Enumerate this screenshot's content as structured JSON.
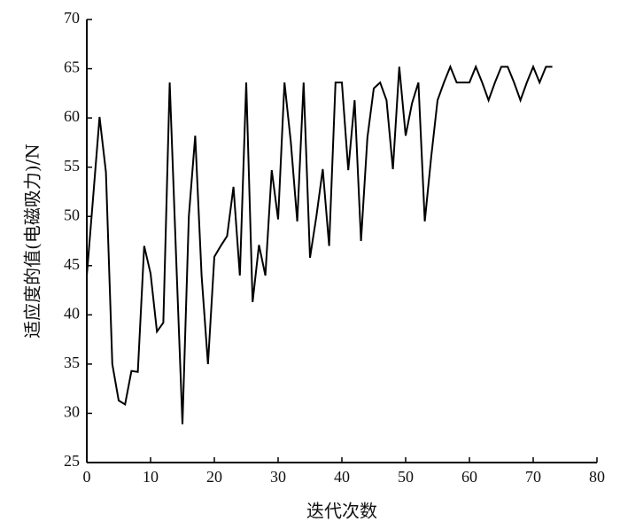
{
  "chart_data": {
    "type": "line",
    "x_label": "迭代次数",
    "y_label": "适应度的值(电磁吸力)/N",
    "x": [
      0,
      1,
      2,
      3,
      4,
      5,
      6,
      7,
      8,
      9,
      10,
      11,
      12,
      13,
      14,
      15,
      16,
      17,
      18,
      19,
      20,
      21,
      22,
      23,
      24,
      25,
      26,
      27,
      28,
      29,
      30,
      31,
      32,
      33,
      34,
      35,
      36,
      37,
      38,
      39,
      40,
      41,
      42,
      43,
      44,
      45,
      46,
      47,
      48,
      49,
      50,
      51,
      52,
      53,
      54,
      55,
      56,
      57,
      58,
      59,
      60,
      61,
      62,
      63,
      64,
      65,
      66,
      67,
      68,
      69,
      70,
      71,
      72,
      73
    ],
    "series": [
      {
        "color": "#000000",
        "values": [
          44,
          52,
          60.1,
          54.5,
          35,
          31.3,
          30.9,
          34.3,
          34.2,
          47,
          44.2,
          38.3,
          39.2,
          63.6,
          46,
          28.9,
          50,
          58.2,
          44,
          35,
          45.9,
          47,
          48,
          53,
          44,
          63.6,
          41.3,
          47.1,
          44,
          54.7,
          49.7,
          63.6,
          57.5,
          49.5,
          63.6,
          45.8,
          50,
          54.8,
          47,
          63.6,
          63.6,
          54.7,
          61.8,
          47.5,
          58,
          63,
          63.6,
          61.8,
          54.8,
          65.2,
          58.2,
          61.5,
          63.6,
          49.5,
          56,
          61.8,
          63.6,
          65.2,
          63.6,
          63.6,
          63.6,
          65.2,
          63.6,
          61.8,
          63.6,
          65.2,
          65.2,
          63.6,
          61.8,
          63.6,
          65.2,
          63.6,
          65.2,
          65.2
        ]
      }
    ],
    "xlim": [
      0,
      80
    ],
    "xticks": [
      0,
      10,
      20,
      30,
      40,
      50,
      60,
      70,
      80
    ],
    "ylim": [
      25,
      70
    ],
    "yticks": [
      25,
      30,
      35,
      40,
      45,
      50,
      55,
      60,
      65,
      70
    ]
  }
}
